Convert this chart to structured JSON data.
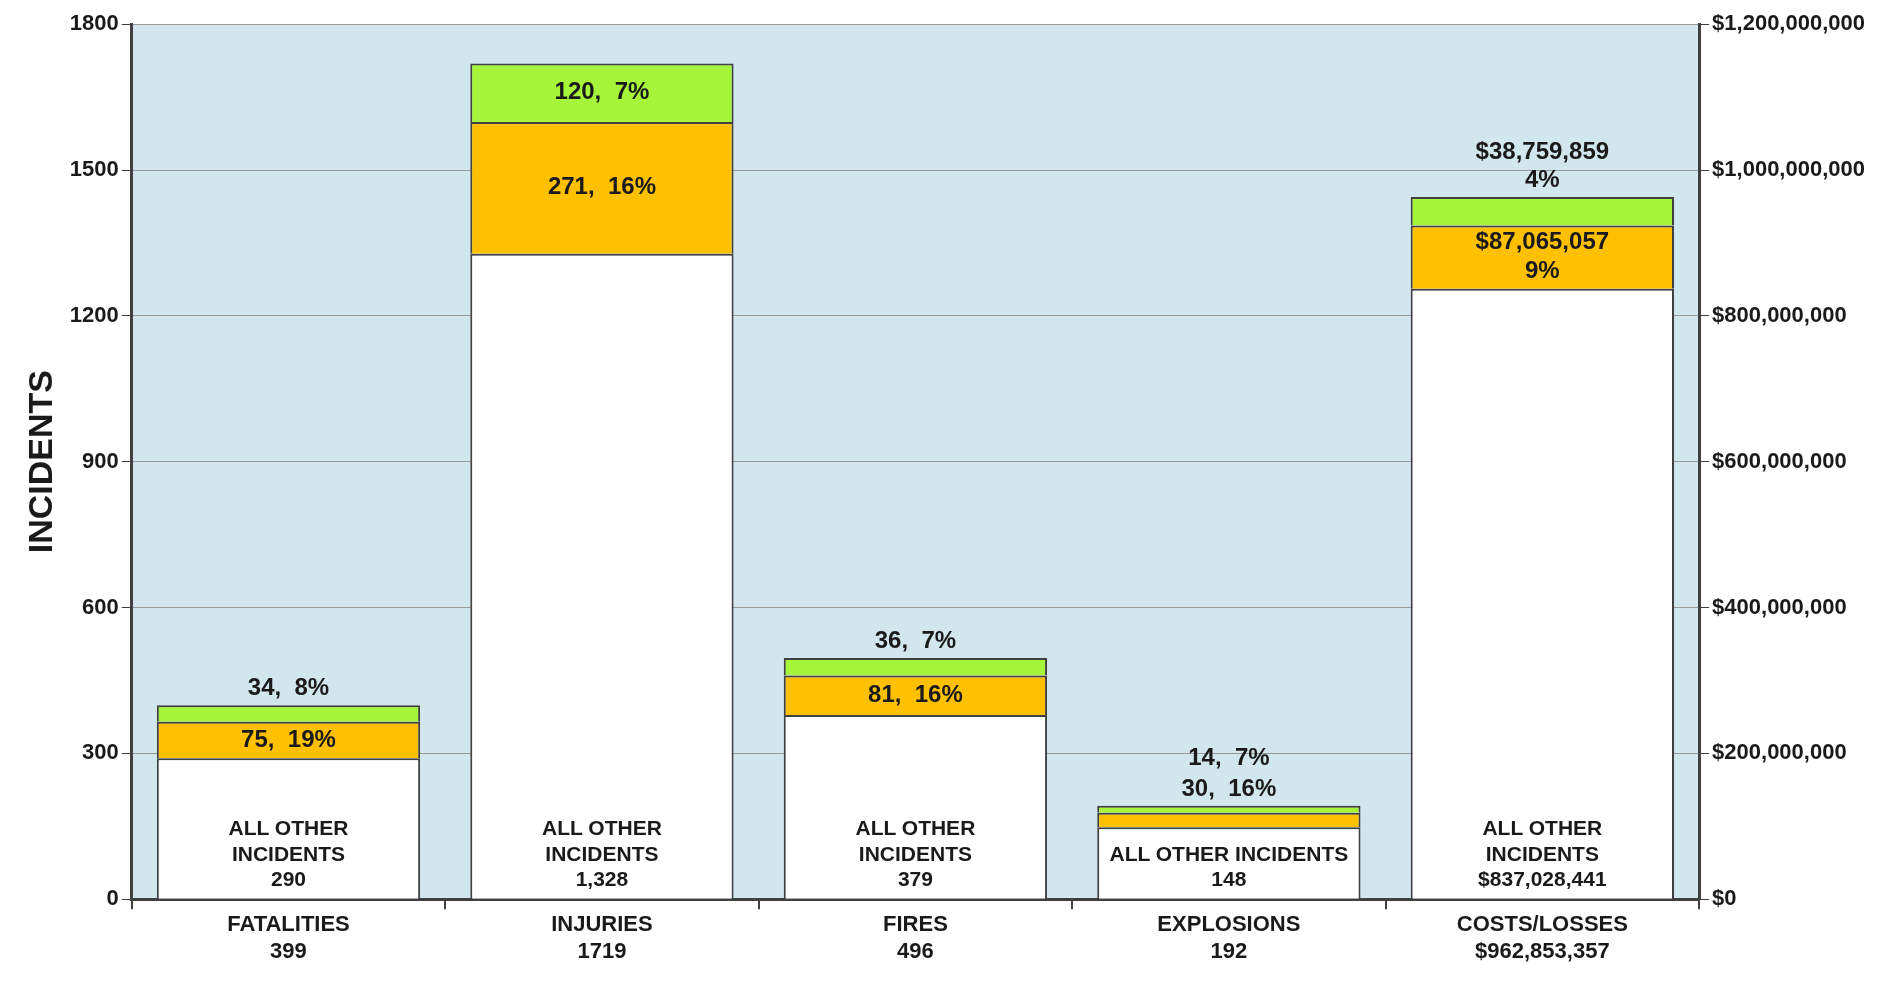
{
  "chart_data": {
    "type": "bar",
    "stacked": true,
    "ylabel": "INCIDENTS",
    "categories": [
      "FATALITIES\n399",
      "INJURIES\n1719",
      "FIRES\n496",
      "EXPLOSIONS\n192",
      "COSTS/LOSSES\n$962,853,357"
    ],
    "series": [
      {
        "color": "#ffffff",
        "values": [
          290,
          1328,
          379,
          148,
          null
        ],
        "value_labels": [
          "ALL OTHER\nINCIDENTS\n290",
          "ALL OTHER\nINCIDENTS\n1,328",
          "ALL OTHER\nINCIDENTS\n379",
          "ALL OTHER INCIDENTS\n148",
          null
        ]
      },
      {
        "color": "#ffc000",
        "values": [
          75,
          271,
          81,
          30,
          null
        ],
        "value_labels": [
          "75,  19%",
          "271,  16%",
          "81,  16%",
          "30,  16%",
          null
        ]
      },
      {
        "color": "#a6f53a",
        "values": [
          34,
          120,
          36,
          14,
          null
        ],
        "value_labels": [
          "34,  8%",
          "120,  7%",
          "36,  7%",
          "14,  7%",
          null
        ]
      },
      {
        "color": "#ffffff",
        "axis": "y2",
        "values": [
          null,
          null,
          null,
          null,
          837028441
        ],
        "value_labels": [
          null,
          null,
          null,
          null,
          "ALL OTHER\nINCIDENTS\n$837,028,441"
        ]
      },
      {
        "color": "#ffc000",
        "axis": "y2",
        "values": [
          null,
          null,
          null,
          null,
          87065057
        ],
        "value_labels": [
          null,
          null,
          null,
          null,
          "$87,065,057\n9%"
        ]
      },
      {
        "color": "#a6f53a",
        "axis": "y2",
        "values": [
          null,
          null,
          null,
          null,
          38759859
        ],
        "value_labels": [
          null,
          null,
          null,
          null,
          "$38,759,859\n4%"
        ]
      }
    ],
    "ylim": [
      0,
      1800
    ],
    "yticks": [
      0,
      300,
      600,
      900,
      1200,
      1500,
      1800
    ],
    "y2lim": [
      0,
      1200000000
    ],
    "y2ticks": [
      {
        "value": 0,
        "label": "$0"
      },
      {
        "value": 200000000,
        "label": "$200,000,000"
      },
      {
        "value": 400000000,
        "label": "$400,000,000"
      },
      {
        "value": 600000000,
        "label": "$600,000,000"
      },
      {
        "value": 800000000,
        "label": "$800,000,000"
      },
      {
        "value": 1000000000,
        "label": "$1,000,000,000"
      },
      {
        "value": 1200000000,
        "label": "$1,200,000,000"
      }
    ],
    "grid": "y",
    "legend": false
  }
}
